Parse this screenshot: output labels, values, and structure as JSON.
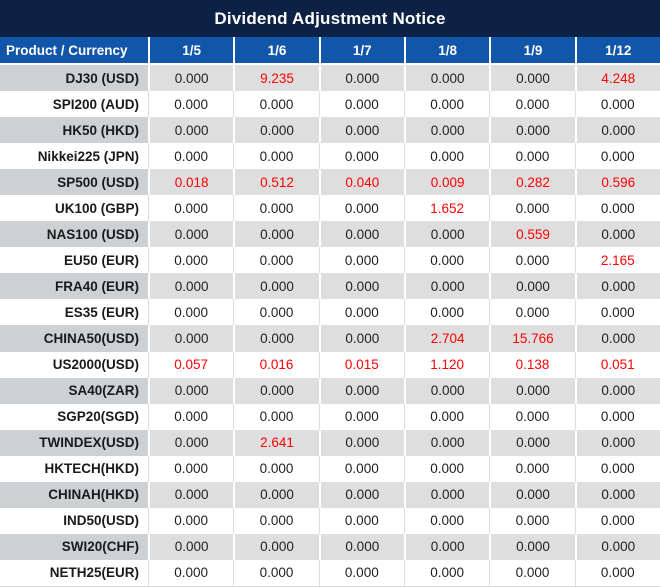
{
  "title": "Dividend Adjustment Notice",
  "colors": {
    "title_bg": "#0D2145",
    "header_bg": "#1156A8",
    "header_text": "#FFFFFF",
    "gray_row_label_bg": "#CDD1D4",
    "gray_row_value_bg": "#DEDEDE",
    "white_row_bg": "#FFFFFF",
    "value_text": "#1F1F1F",
    "nonzero_value_text": "#FF0000"
  },
  "chart_data": {
    "type": "table",
    "title": "Dividend Adjustment Notice",
    "product_column_header": "Product / Currency",
    "date_columns": [
      "1/5",
      "1/6",
      "1/7",
      "1/8",
      "1/9",
      "1/12"
    ],
    "rows": [
      {
        "label": "DJ30 (USD)",
        "values": [
          "0.000",
          "9.235",
          "0.000",
          "0.000",
          "0.000",
          "4.248"
        ],
        "red": [
          false,
          true,
          false,
          false,
          false,
          true
        ]
      },
      {
        "label": "SPI200 (AUD)",
        "values": [
          "0.000",
          "0.000",
          "0.000",
          "0.000",
          "0.000",
          "0.000"
        ],
        "red": [
          false,
          false,
          false,
          false,
          false,
          false
        ]
      },
      {
        "label": "HK50 (HKD)",
        "values": [
          "0.000",
          "0.000",
          "0.000",
          "0.000",
          "0.000",
          "0.000"
        ],
        "red": [
          false,
          false,
          false,
          false,
          false,
          false
        ]
      },
      {
        "label": "Nikkei225 (JPN)",
        "values": [
          "0.000",
          "0.000",
          "0.000",
          "0.000",
          "0.000",
          "0.000"
        ],
        "red": [
          false,
          false,
          false,
          false,
          false,
          false
        ]
      },
      {
        "label": "SP500 (USD)",
        "values": [
          "0.018",
          "0.512",
          "0.040",
          "0.009",
          "0.282",
          "0.596"
        ],
        "red": [
          true,
          true,
          true,
          true,
          true,
          true
        ]
      },
      {
        "label": "UK100 (GBP)",
        "values": [
          "0.000",
          "0.000",
          "0.000",
          "1.652",
          "0.000",
          "0.000"
        ],
        "red": [
          false,
          false,
          false,
          true,
          false,
          false
        ]
      },
      {
        "label": "NAS100 (USD)",
        "values": [
          "0.000",
          "0.000",
          "0.000",
          "0.000",
          "0.559",
          "0.000"
        ],
        "red": [
          false,
          false,
          false,
          false,
          true,
          false
        ]
      },
      {
        "label": "EU50 (EUR)",
        "values": [
          "0.000",
          "0.000",
          "0.000",
          "0.000",
          "0.000",
          "2.165"
        ],
        "red": [
          false,
          false,
          false,
          false,
          false,
          true
        ]
      },
      {
        "label": "FRA40 (EUR)",
        "values": [
          "0.000",
          "0.000",
          "0.000",
          "0.000",
          "0.000",
          "0.000"
        ],
        "red": [
          false,
          false,
          false,
          false,
          false,
          false
        ]
      },
      {
        "label": "ES35 (EUR)",
        "values": [
          "0.000",
          "0.000",
          "0.000",
          "0.000",
          "0.000",
          "0.000"
        ],
        "red": [
          false,
          false,
          false,
          false,
          false,
          false
        ]
      },
      {
        "label": "CHINA50(USD)",
        "values": [
          "0.000",
          "0.000",
          "0.000",
          "2.704",
          "15.766",
          "0.000"
        ],
        "red": [
          false,
          false,
          false,
          true,
          true,
          false
        ]
      },
      {
        "label": "US2000(USD)",
        "values": [
          "0.057",
          "0.016",
          "0.015",
          "1.120",
          "0.138",
          "0.051"
        ],
        "red": [
          true,
          true,
          true,
          true,
          true,
          true
        ]
      },
      {
        "label": "SA40(ZAR)",
        "values": [
          "0.000",
          "0.000",
          "0.000",
          "0.000",
          "0.000",
          "0.000"
        ],
        "red": [
          false,
          false,
          false,
          false,
          false,
          false
        ]
      },
      {
        "label": "SGP20(SGD)",
        "values": [
          "0.000",
          "0.000",
          "0.000",
          "0.000",
          "0.000",
          "0.000"
        ],
        "red": [
          false,
          false,
          false,
          false,
          false,
          false
        ]
      },
      {
        "label": "TWINDEX(USD)",
        "values": [
          "0.000",
          "2.641",
          "0.000",
          "0.000",
          "0.000",
          "0.000"
        ],
        "red": [
          false,
          true,
          false,
          false,
          false,
          false
        ]
      },
      {
        "label": "HKTECH(HKD)",
        "values": [
          "0.000",
          "0.000",
          "0.000",
          "0.000",
          "0.000",
          "0.000"
        ],
        "red": [
          false,
          false,
          false,
          false,
          false,
          false
        ]
      },
      {
        "label": "CHINAH(HKD)",
        "values": [
          "0.000",
          "0.000",
          "0.000",
          "0.000",
          "0.000",
          "0.000"
        ],
        "red": [
          false,
          false,
          false,
          false,
          false,
          false
        ]
      },
      {
        "label": "IND50(USD)",
        "values": [
          "0.000",
          "0.000",
          "0.000",
          "0.000",
          "0.000",
          "0.000"
        ],
        "red": [
          false,
          false,
          false,
          false,
          false,
          false
        ]
      },
      {
        "label": "SWI20(CHF)",
        "values": [
          "0.000",
          "0.000",
          "0.000",
          "0.000",
          "0.000",
          "0.000"
        ],
        "red": [
          false,
          false,
          false,
          false,
          false,
          false
        ]
      },
      {
        "label": "NETH25(EUR)",
        "values": [
          "0.000",
          "0.000",
          "0.000",
          "0.000",
          "0.000",
          "0.000"
        ],
        "red": [
          false,
          false,
          false,
          false,
          false,
          false
        ]
      }
    ]
  }
}
